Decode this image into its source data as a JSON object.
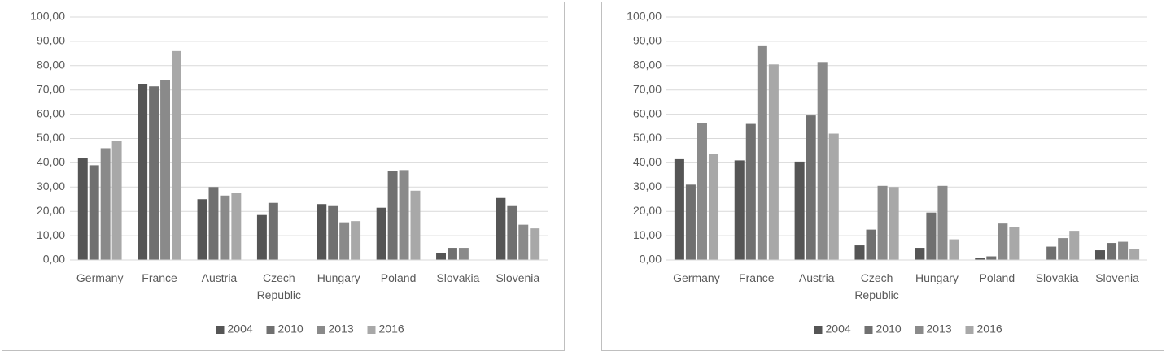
{
  "chart_data": [
    {
      "type": "bar",
      "categories": [
        "Germany",
        "France",
        "Austria",
        "Czech Republic",
        "Hungary",
        "Poland",
        "Slovakia",
        "Slovenia"
      ],
      "series": [
        {
          "name": "2004",
          "color": "#555555",
          "values": [
            42,
            72.5,
            25,
            18.5,
            23,
            21.5,
            3,
            25.5
          ]
        },
        {
          "name": "2010",
          "color": "#707070",
          "values": [
            39,
            71.5,
            30,
            23.5,
            22.5,
            36.5,
            5,
            22.5
          ]
        },
        {
          "name": "2013",
          "color": "#8a8a8a",
          "values": [
            46,
            74,
            26.5,
            null,
            15.5,
            37,
            5,
            14.5
          ]
        },
        {
          "name": "2016",
          "color": "#a8a8a8",
          "values": [
            49,
            86,
            27.5,
            null,
            16,
            28.5,
            null,
            13
          ]
        }
      ],
      "ylim": [
        0,
        100
      ],
      "yticks": [
        {
          "value": 0,
          "label": "0,00"
        },
        {
          "value": 10,
          "label": "10,00"
        },
        {
          "value": 20,
          "label": "20,00"
        },
        {
          "value": 30,
          "label": "30,00"
        },
        {
          "value": 40,
          "label": "40,00"
        },
        {
          "value": 50,
          "label": "50,00"
        },
        {
          "value": 60,
          "label": "60,00"
        },
        {
          "value": 70,
          "label": "70,00"
        },
        {
          "value": 80,
          "label": "80,00"
        },
        {
          "value": 90,
          "label": "90,00"
        },
        {
          "value": 100,
          "label": "100,00"
        }
      ],
      "grid": true,
      "legend": "bottom"
    },
    {
      "type": "bar",
      "categories": [
        "Germany",
        "France",
        "Austria",
        "Czech Republic",
        "Hungary",
        "Poland",
        "Slovakia",
        "Slovenia"
      ],
      "series": [
        {
          "name": "2004",
          "color": "#555555",
          "values": [
            41.5,
            41,
            40.5,
            6,
            5,
            0.8,
            null,
            4
          ]
        },
        {
          "name": "2010",
          "color": "#707070",
          "values": [
            31,
            56,
            59.5,
            12.5,
            19.5,
            1.5,
            5.5,
            7
          ]
        },
        {
          "name": "2013",
          "color": "#8a8a8a",
          "values": [
            56.5,
            88,
            81.5,
            30.5,
            30.5,
            15,
            9,
            7.5
          ]
        },
        {
          "name": "2016",
          "color": "#a8a8a8",
          "values": [
            43.5,
            80.5,
            52,
            30,
            8.5,
            13.5,
            12,
            4.5
          ]
        }
      ],
      "ylim": [
        0,
        100
      ],
      "yticks": [
        {
          "value": 0,
          "label": "0,00"
        },
        {
          "value": 10,
          "label": "10,00"
        },
        {
          "value": 20,
          "label": "20,00"
        },
        {
          "value": 30,
          "label": "30,00"
        },
        {
          "value": 40,
          "label": "40,00"
        },
        {
          "value": 50,
          "label": "50,00"
        },
        {
          "value": 60,
          "label": "60,00"
        },
        {
          "value": 70,
          "label": "70,00"
        },
        {
          "value": 80,
          "label": "80,00"
        },
        {
          "value": 90,
          "label": "90,00"
        },
        {
          "value": 100,
          "label": "100,00"
        }
      ],
      "grid": true,
      "legend": "bottom"
    }
  ]
}
